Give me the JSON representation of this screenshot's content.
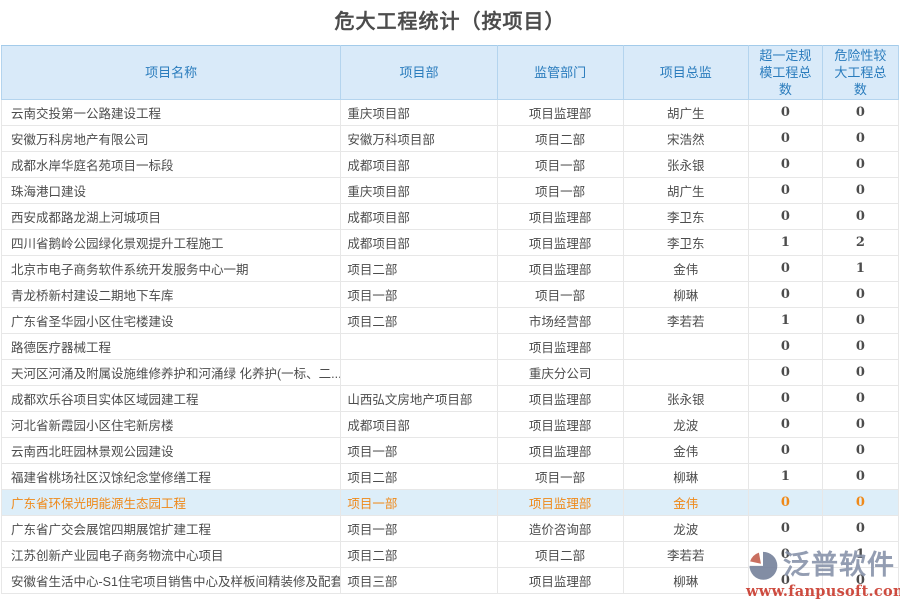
{
  "title": "危大工程统计（按项目）",
  "table": {
    "columns": [
      {
        "key": "name",
        "label": "项目名称"
      },
      {
        "key": "dept",
        "label": "项目部"
      },
      {
        "key": "supervising-dept",
        "label": "监管部门"
      },
      {
        "key": "director",
        "label": "项目总监"
      },
      {
        "key": "over-scale-total",
        "label": "超一定规模工程总数"
      },
      {
        "key": "high-risk-total",
        "label": "危险性较大工程总数"
      }
    ],
    "rows": [
      [
        "云南交投第一公路建设工程",
        "重庆项目部",
        "项目监理部",
        "胡广生",
        "0",
        "0"
      ],
      [
        "安徽万科房地产有限公司",
        "安徽万科项目部",
        "项目二部",
        "宋浩然",
        "0",
        "0"
      ],
      [
        "成都水岸华庭名苑项目一标段",
        "成都项目部",
        "项目一部",
        "张永银",
        "0",
        "0"
      ],
      [
        "珠海港口建设",
        "重庆项目部",
        "项目一部",
        "胡广生",
        "0",
        "0"
      ],
      [
        "西安成都路龙湖上河城项目",
        "成都项目部",
        "项目监理部",
        "李卫东",
        "0",
        "0"
      ],
      [
        "四川省鹅岭公园绿化景观提升工程施工",
        "成都项目部",
        "项目监理部",
        "李卫东",
        "1",
        "2"
      ],
      [
        "北京市电子商务软件系统开发服务中心一期",
        "项目二部",
        "项目监理部",
        "金伟",
        "0",
        "1"
      ],
      [
        "青龙桥新村建设二期地下车库",
        "项目一部",
        "项目一部",
        "柳琳",
        "0",
        "0"
      ],
      [
        "广东省圣华园小区住宅楼建设",
        "项目二部",
        "市场经营部",
        "李若若",
        "1",
        "0"
      ],
      [
        "路德医疗器械工程",
        "",
        "项目监理部",
        "",
        "0",
        "0"
      ],
      [
        "天河区河涌及附属设施维修养护和河涌绿 化养护(一标、二...",
        "",
        "重庆分公司",
        "",
        "0",
        "0"
      ],
      [
        "成都欢乐谷项目实体区域园建工程",
        "山西弘文房地产项目部",
        "项目监理部",
        "张永银",
        "0",
        "0"
      ],
      [
        "河北省新霞园小区住宅新房楼",
        "成都项目部",
        "项目监理部",
        "龙波",
        "0",
        "0"
      ],
      [
        "云南西北旺园林景观公园建设",
        "项目一部",
        "项目监理部",
        "金伟",
        "0",
        "0"
      ],
      [
        "福建省桃场社区汉馀纪念堂修缮工程",
        "项目二部",
        "项目一部",
        "柳琳",
        "1",
        "0"
      ],
      [
        "广东省环保光明能源生态园工程",
        "项目一部",
        "项目监理部",
        "金伟",
        "0",
        "0"
      ],
      [
        "广东省广交会展馆四期展馆扩建工程",
        "项目一部",
        "造价咨询部",
        "龙波",
        "0",
        "0"
      ],
      [
        "江苏创新产业园电子商务物流中心项目",
        "项目二部",
        "项目二部",
        "李若若",
        "0",
        "1"
      ],
      [
        "安徽省生活中心-S1住宅项目销售中心及样板间精装修及配套",
        "项目三部",
        "项目监理部",
        "柳琳",
        "0",
        "0"
      ]
    ],
    "highlighted_row_index": 15
  },
  "watermark": {
    "brand": "泛普软件",
    "url": "www.fanpusoft.com"
  },
  "colors": {
    "header_bg": "#d9eaf9",
    "header_text": "#2a7cbd",
    "highlight_bg": "#ddeef9",
    "highlight_text": "#ef8919",
    "body_text": "#4c4c4c",
    "row_border": "#e7e7e7",
    "watermark_brand": "#8893aa",
    "watermark_url_red": "#c9392c",
    "watermark_logo_slate": "#75819b",
    "watermark_logo_red": "#c4604f"
  }
}
